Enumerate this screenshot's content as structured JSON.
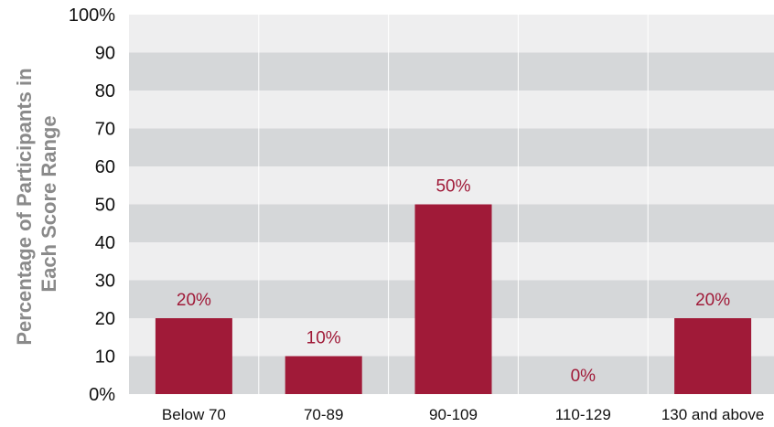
{
  "chart_data": {
    "type": "bar",
    "categories": [
      "Below 70",
      "70-89",
      "90-109",
      "110-129",
      "130 and above"
    ],
    "values": [
      20,
      10,
      50,
      0,
      20
    ],
    "data_labels": [
      "20%",
      "10%",
      "50%",
      "0%",
      "20%"
    ],
    "ylabel_lines": [
      "Percentage of Participants in",
      "Each Score Range"
    ],
    "xlabel": "",
    "ylim": [
      0,
      100
    ],
    "yticks": [
      "0%",
      "10",
      "20",
      "30",
      "40",
      "50",
      "60",
      "70",
      "80",
      "90",
      "100%"
    ],
    "grid": true,
    "legend": "none",
    "colors": {
      "bar": "#a01a38",
      "label": "#a01a38",
      "band_light": "#eeeeef",
      "band_dark": "#d5d7d9",
      "divider": "#ffffff"
    }
  }
}
